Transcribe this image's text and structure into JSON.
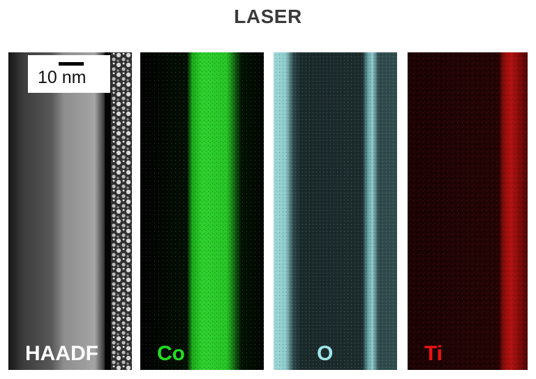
{
  "title": "LASER",
  "panels": [
    {
      "label": "HAADF",
      "label_color": "#ffffff"
    },
    {
      "label": "Co",
      "label_color": "#22dd22"
    },
    {
      "label": "O",
      "label_color": "#9ee6e8"
    },
    {
      "label": "Ti",
      "label_color": "#ee1111"
    }
  ],
  "scale_bar": {
    "label": "10 nm"
  }
}
